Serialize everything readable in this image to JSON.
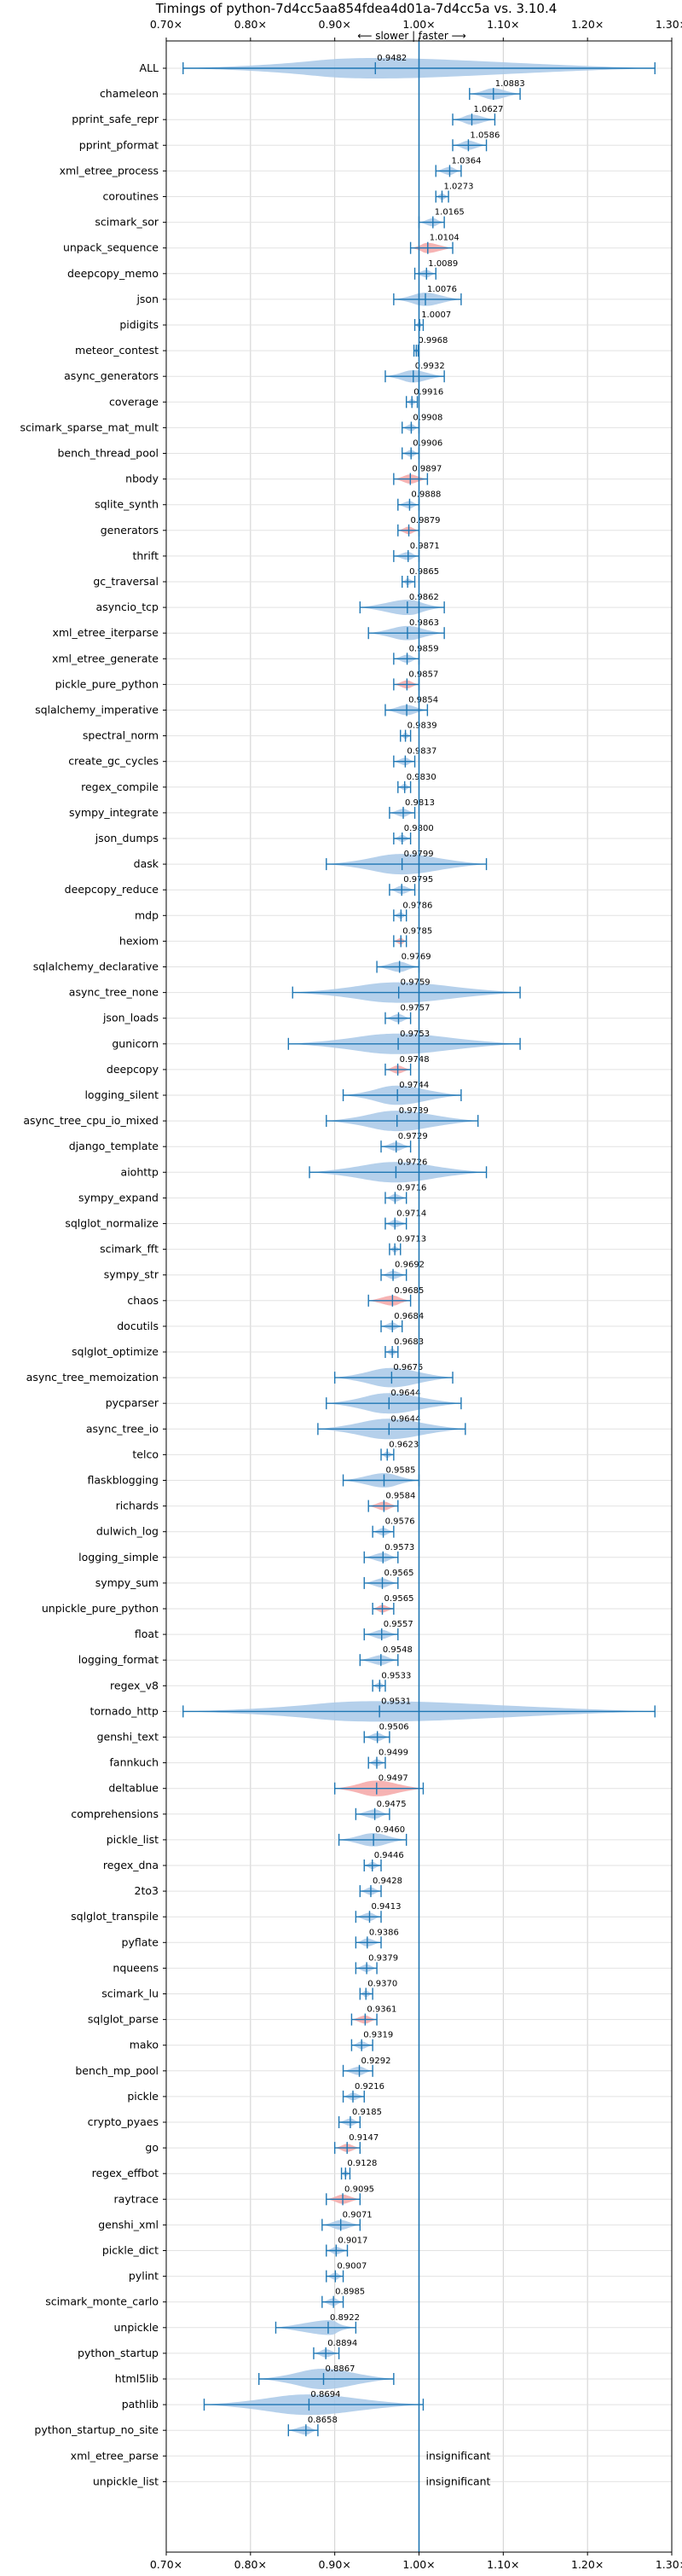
{
  "chart_data": {
    "type": "violin",
    "title": "Timings of python-7d4cc5aa854fdea4d01a-7d4cc5a vs. 3.10.4",
    "direction_label": "⟵ slower | faster ⟶",
    "xlim": [
      0.7,
      1.3
    ],
    "x_ticks": [
      "0.70×",
      "0.80×",
      "0.90×",
      "1.00×",
      "1.10×",
      "1.20×",
      "1.30×"
    ],
    "x_tick_values": [
      0.7,
      0.8,
      0.9,
      1.0,
      1.1,
      1.2,
      1.3
    ],
    "reference_line": 1.0,
    "grid": true,
    "insignificant_label": "insignificant",
    "colors": {
      "normal": "#a8c8e8",
      "highlight": "#f4a6a6",
      "line": "#1f77b4"
    },
    "benchmarks": [
      {
        "name": "ALL",
        "value": 0.9482,
        "label": "0.9482",
        "lo": 0.72,
        "hi": 1.28,
        "highlight": false
      },
      {
        "name": "chameleon",
        "value": 1.0883,
        "label": "1.0883",
        "lo": 1.06,
        "hi": 1.12,
        "highlight": false
      },
      {
        "name": "pprint_safe_repr",
        "value": 1.0627,
        "label": "1.0627",
        "lo": 1.04,
        "hi": 1.09,
        "highlight": false
      },
      {
        "name": "pprint_pformat",
        "value": 1.0586,
        "label": "1.0586",
        "lo": 1.04,
        "hi": 1.08,
        "highlight": false
      },
      {
        "name": "xml_etree_process",
        "value": 1.0364,
        "label": "1.0364",
        "lo": 1.02,
        "hi": 1.05,
        "highlight": false
      },
      {
        "name": "coroutines",
        "value": 1.0273,
        "label": "1.0273",
        "lo": 1.02,
        "hi": 1.035,
        "highlight": false
      },
      {
        "name": "scimark_sor",
        "value": 1.0165,
        "label": "1.0165",
        "lo": 1.0,
        "hi": 1.03,
        "highlight": false
      },
      {
        "name": "unpack_sequence",
        "value": 1.0104,
        "label": "1.0104",
        "lo": 0.99,
        "hi": 1.04,
        "highlight": true
      },
      {
        "name": "deepcopy_memo",
        "value": 1.0089,
        "label": "1.0089",
        "lo": 0.995,
        "hi": 1.02,
        "highlight": false
      },
      {
        "name": "json",
        "value": 1.0076,
        "label": "1.0076",
        "lo": 0.97,
        "hi": 1.05,
        "highlight": false
      },
      {
        "name": "pidigits",
        "value": 1.0007,
        "label": "1.0007",
        "lo": 0.995,
        "hi": 1.005,
        "highlight": false
      },
      {
        "name": "meteor_contest",
        "value": 0.9968,
        "label": "0.9968",
        "lo": 0.994,
        "hi": 0.999,
        "highlight": false
      },
      {
        "name": "async_generators",
        "value": 0.9932,
        "label": "0.9932",
        "lo": 0.96,
        "hi": 1.03,
        "highlight": false
      },
      {
        "name": "coverage",
        "value": 0.9916,
        "label": "0.9916",
        "lo": 0.985,
        "hi": 0.998,
        "highlight": false
      },
      {
        "name": "scimark_sparse_mat_mult",
        "value": 0.9908,
        "label": "0.9908",
        "lo": 0.98,
        "hi": 1.0,
        "highlight": false
      },
      {
        "name": "bench_thread_pool",
        "value": 0.9906,
        "label": "0.9906",
        "lo": 0.98,
        "hi": 1.0,
        "highlight": false
      },
      {
        "name": "nbody",
        "value": 0.9897,
        "label": "0.9897",
        "lo": 0.97,
        "hi": 1.01,
        "highlight": true
      },
      {
        "name": "sqlite_synth",
        "value": 0.9888,
        "label": "0.9888",
        "lo": 0.975,
        "hi": 1.0,
        "highlight": false
      },
      {
        "name": "generators",
        "value": 0.9879,
        "label": "0.9879",
        "lo": 0.975,
        "hi": 1.0,
        "highlight": true
      },
      {
        "name": "thrift",
        "value": 0.9871,
        "label": "0.9871",
        "lo": 0.97,
        "hi": 1.0,
        "highlight": false
      },
      {
        "name": "gc_traversal",
        "value": 0.9865,
        "label": "0.9865",
        "lo": 0.98,
        "hi": 0.995,
        "highlight": false
      },
      {
        "name": "asyncio_tcp",
        "value": 0.9862,
        "label": "0.9862",
        "lo": 0.93,
        "hi": 1.03,
        "highlight": false
      },
      {
        "name": "xml_etree_iterparse",
        "value": 0.9863,
        "label": "0.9863",
        "lo": 0.94,
        "hi": 1.03,
        "highlight": false
      },
      {
        "name": "xml_etree_generate",
        "value": 0.9859,
        "label": "0.9859",
        "lo": 0.97,
        "hi": 1.0,
        "highlight": false
      },
      {
        "name": "pickle_pure_python",
        "value": 0.9857,
        "label": "0.9857",
        "lo": 0.97,
        "hi": 1.0,
        "highlight": true
      },
      {
        "name": "sqlalchemy_imperative",
        "value": 0.9854,
        "label": "0.9854",
        "lo": 0.96,
        "hi": 1.01,
        "highlight": false
      },
      {
        "name": "spectral_norm",
        "value": 0.9839,
        "label": "0.9839",
        "lo": 0.978,
        "hi": 0.99,
        "highlight": false
      },
      {
        "name": "create_gc_cycles",
        "value": 0.9837,
        "label": "0.9837",
        "lo": 0.97,
        "hi": 0.995,
        "highlight": false
      },
      {
        "name": "regex_compile",
        "value": 0.983,
        "label": "0.9830",
        "lo": 0.975,
        "hi": 0.99,
        "highlight": false
      },
      {
        "name": "sympy_integrate",
        "value": 0.9813,
        "label": "0.9813",
        "lo": 0.965,
        "hi": 0.995,
        "highlight": false
      },
      {
        "name": "json_dumps",
        "value": 0.98,
        "label": "0.9800",
        "lo": 0.97,
        "hi": 0.99,
        "highlight": false
      },
      {
        "name": "dask",
        "value": 0.9799,
        "label": "0.9799",
        "lo": 0.89,
        "hi": 1.08,
        "highlight": false
      },
      {
        "name": "deepcopy_reduce",
        "value": 0.9795,
        "label": "0.9795",
        "lo": 0.965,
        "hi": 0.995,
        "highlight": false
      },
      {
        "name": "mdp",
        "value": 0.9786,
        "label": "0.9786",
        "lo": 0.97,
        "hi": 0.985,
        "highlight": false
      },
      {
        "name": "hexiom",
        "value": 0.9785,
        "label": "0.9785",
        "lo": 0.97,
        "hi": 0.985,
        "highlight": true
      },
      {
        "name": "sqlalchemy_declarative",
        "value": 0.9769,
        "label": "0.9769",
        "lo": 0.95,
        "hi": 1.0,
        "highlight": false
      },
      {
        "name": "async_tree_none",
        "value": 0.9759,
        "label": "0.9759",
        "lo": 0.85,
        "hi": 1.12,
        "highlight": false
      },
      {
        "name": "json_loads",
        "value": 0.9757,
        "label": "0.9757",
        "lo": 0.96,
        "hi": 0.99,
        "highlight": false
      },
      {
        "name": "gunicorn",
        "value": 0.9753,
        "label": "0.9753",
        "lo": 0.845,
        "hi": 1.12,
        "highlight": false
      },
      {
        "name": "deepcopy",
        "value": 0.9748,
        "label": "0.9748",
        "lo": 0.96,
        "hi": 0.99,
        "highlight": true
      },
      {
        "name": "logging_silent",
        "value": 0.9744,
        "label": "0.9744",
        "lo": 0.91,
        "hi": 1.05,
        "highlight": false
      },
      {
        "name": "async_tree_cpu_io_mixed",
        "value": 0.9739,
        "label": "0.9739",
        "lo": 0.89,
        "hi": 1.07,
        "highlight": false
      },
      {
        "name": "django_template",
        "value": 0.9729,
        "label": "0.9729",
        "lo": 0.955,
        "hi": 0.99,
        "highlight": false
      },
      {
        "name": "aiohttp",
        "value": 0.9726,
        "label": "0.9726",
        "lo": 0.87,
        "hi": 1.08,
        "highlight": false
      },
      {
        "name": "sympy_expand",
        "value": 0.9716,
        "label": "0.9716",
        "lo": 0.96,
        "hi": 0.985,
        "highlight": false
      },
      {
        "name": "sqlglot_normalize",
        "value": 0.9714,
        "label": "0.9714",
        "lo": 0.96,
        "hi": 0.985,
        "highlight": false
      },
      {
        "name": "scimark_fft",
        "value": 0.9713,
        "label": "0.9713",
        "lo": 0.965,
        "hi": 0.978,
        "highlight": false
      },
      {
        "name": "sympy_str",
        "value": 0.9692,
        "label": "0.9692",
        "lo": 0.955,
        "hi": 0.985,
        "highlight": false
      },
      {
        "name": "chaos",
        "value": 0.9685,
        "label": "0.9685",
        "lo": 0.94,
        "hi": 0.99,
        "highlight": true
      },
      {
        "name": "docutils",
        "value": 0.9684,
        "label": "0.9684",
        "lo": 0.955,
        "hi": 0.98,
        "highlight": false
      },
      {
        "name": "sqlglot_optimize",
        "value": 0.9683,
        "label": "0.9683",
        "lo": 0.96,
        "hi": 0.975,
        "highlight": false
      },
      {
        "name": "async_tree_memoization",
        "value": 0.9675,
        "label": "0.9675",
        "lo": 0.9,
        "hi": 1.04,
        "highlight": false
      },
      {
        "name": "pycparser",
        "value": 0.9644,
        "label": "0.9644",
        "lo": 0.89,
        "hi": 1.05,
        "highlight": false
      },
      {
        "name": "async_tree_io",
        "value": 0.9644,
        "label": "0.9644",
        "lo": 0.88,
        "hi": 1.055,
        "highlight": false
      },
      {
        "name": "telco",
        "value": 0.9623,
        "label": "0.9623",
        "lo": 0.955,
        "hi": 0.97,
        "highlight": false
      },
      {
        "name": "flaskblogging",
        "value": 0.9585,
        "label": "0.9585",
        "lo": 0.91,
        "hi": 1.0,
        "highlight": false
      },
      {
        "name": "richards",
        "value": 0.9584,
        "label": "0.9584",
        "lo": 0.94,
        "hi": 0.975,
        "highlight": true
      },
      {
        "name": "dulwich_log",
        "value": 0.9576,
        "label": "0.9576",
        "lo": 0.945,
        "hi": 0.97,
        "highlight": false
      },
      {
        "name": "logging_simple",
        "value": 0.9573,
        "label": "0.9573",
        "lo": 0.935,
        "hi": 0.975,
        "highlight": false
      },
      {
        "name": "sympy_sum",
        "value": 0.9565,
        "label": "0.9565",
        "lo": 0.935,
        "hi": 0.975,
        "highlight": false
      },
      {
        "name": "unpickle_pure_python",
        "value": 0.9565,
        "label": "0.9565",
        "lo": 0.945,
        "hi": 0.97,
        "highlight": true
      },
      {
        "name": "float",
        "value": 0.9557,
        "label": "0.9557",
        "lo": 0.935,
        "hi": 0.975,
        "highlight": false
      },
      {
        "name": "logging_format",
        "value": 0.9548,
        "label": "0.9548",
        "lo": 0.93,
        "hi": 0.975,
        "highlight": false
      },
      {
        "name": "regex_v8",
        "value": 0.9533,
        "label": "0.9533",
        "lo": 0.945,
        "hi": 0.96,
        "highlight": false
      },
      {
        "name": "tornado_http",
        "value": 0.9531,
        "label": "0.9531",
        "lo": 0.72,
        "hi": 1.28,
        "highlight": false
      },
      {
        "name": "genshi_text",
        "value": 0.9506,
        "label": "0.9506",
        "lo": 0.935,
        "hi": 0.965,
        "highlight": false
      },
      {
        "name": "fannkuch",
        "value": 0.9499,
        "label": "0.9499",
        "lo": 0.94,
        "hi": 0.96,
        "highlight": false
      },
      {
        "name": "deltablue",
        "value": 0.9497,
        "label": "0.9497",
        "lo": 0.9,
        "hi": 1.005,
        "highlight": true
      },
      {
        "name": "comprehensions",
        "value": 0.9475,
        "label": "0.9475",
        "lo": 0.925,
        "hi": 0.965,
        "highlight": false
      },
      {
        "name": "pickle_list",
        "value": 0.946,
        "label": "0.9460",
        "lo": 0.905,
        "hi": 0.985,
        "highlight": false
      },
      {
        "name": "regex_dna",
        "value": 0.9446,
        "label": "0.9446",
        "lo": 0.935,
        "hi": 0.955,
        "highlight": false
      },
      {
        "name": "2to3",
        "value": 0.9428,
        "label": "0.9428",
        "lo": 0.93,
        "hi": 0.955,
        "highlight": false
      },
      {
        "name": "sqlglot_transpile",
        "value": 0.9413,
        "label": "0.9413",
        "lo": 0.925,
        "hi": 0.955,
        "highlight": false
      },
      {
        "name": "pyflate",
        "value": 0.9386,
        "label": "0.9386",
        "lo": 0.925,
        "hi": 0.955,
        "highlight": false
      },
      {
        "name": "nqueens",
        "value": 0.9379,
        "label": "0.9379",
        "lo": 0.925,
        "hi": 0.95,
        "highlight": false
      },
      {
        "name": "scimark_lu",
        "value": 0.937,
        "label": "0.9370",
        "lo": 0.93,
        "hi": 0.945,
        "highlight": false
      },
      {
        "name": "sqlglot_parse",
        "value": 0.9361,
        "label": "0.9361",
        "lo": 0.92,
        "hi": 0.95,
        "highlight": true
      },
      {
        "name": "mako",
        "value": 0.9319,
        "label": "0.9319",
        "lo": 0.92,
        "hi": 0.945,
        "highlight": false
      },
      {
        "name": "bench_mp_pool",
        "value": 0.9292,
        "label": "0.9292",
        "lo": 0.91,
        "hi": 0.945,
        "highlight": false
      },
      {
        "name": "pickle",
        "value": 0.9216,
        "label": "0.9216",
        "lo": 0.91,
        "hi": 0.935,
        "highlight": false
      },
      {
        "name": "crypto_pyaes",
        "value": 0.9185,
        "label": "0.9185",
        "lo": 0.905,
        "hi": 0.93,
        "highlight": false
      },
      {
        "name": "go",
        "value": 0.9147,
        "label": "0.9147",
        "lo": 0.9,
        "hi": 0.93,
        "highlight": true
      },
      {
        "name": "regex_effbot",
        "value": 0.9128,
        "label": "0.9128",
        "lo": 0.908,
        "hi": 0.918,
        "highlight": false
      },
      {
        "name": "raytrace",
        "value": 0.9095,
        "label": "0.9095",
        "lo": 0.89,
        "hi": 0.93,
        "highlight": true
      },
      {
        "name": "genshi_xml",
        "value": 0.9071,
        "label": "0.9071",
        "lo": 0.885,
        "hi": 0.93,
        "highlight": false
      },
      {
        "name": "pickle_dict",
        "value": 0.9017,
        "label": "0.9017",
        "lo": 0.89,
        "hi": 0.915,
        "highlight": false
      },
      {
        "name": "pylint",
        "value": 0.9007,
        "label": "0.9007",
        "lo": 0.89,
        "hi": 0.91,
        "highlight": false
      },
      {
        "name": "scimark_monte_carlo",
        "value": 0.8985,
        "label": "0.8985",
        "lo": 0.885,
        "hi": 0.91,
        "highlight": false
      },
      {
        "name": "unpickle",
        "value": 0.8922,
        "label": "0.8922",
        "lo": 0.83,
        "hi": 0.925,
        "highlight": false
      },
      {
        "name": "python_startup",
        "value": 0.8894,
        "label": "0.8894",
        "lo": 0.875,
        "hi": 0.905,
        "highlight": false
      },
      {
        "name": "html5lib",
        "value": 0.8867,
        "label": "0.8867",
        "lo": 0.81,
        "hi": 0.97,
        "highlight": false
      },
      {
        "name": "pathlib",
        "value": 0.8694,
        "label": "0.8694",
        "lo": 0.745,
        "hi": 1.005,
        "highlight": false
      },
      {
        "name": "python_startup_no_site",
        "value": 0.8658,
        "label": "0.8658",
        "lo": 0.845,
        "hi": 0.88,
        "highlight": false
      },
      {
        "name": "xml_etree_parse",
        "value": null,
        "label": "insignificant",
        "lo": null,
        "hi": null,
        "highlight": false
      },
      {
        "name": "unpickle_list",
        "value": null,
        "label": "insignificant",
        "lo": null,
        "hi": null,
        "highlight": false
      }
    ]
  }
}
